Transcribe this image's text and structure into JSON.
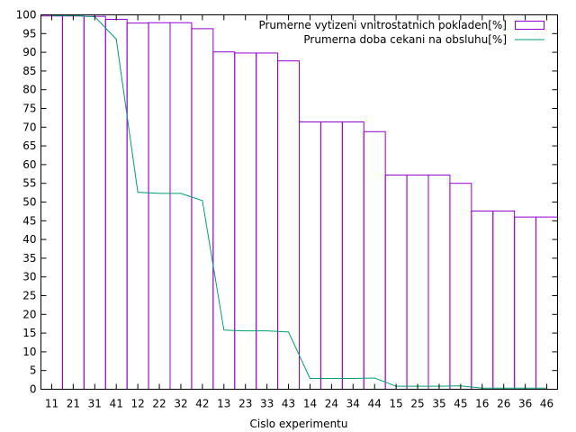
{
  "colors": {
    "bars": "#9400d3",
    "line": "#009e73",
    "axis": "#000000",
    "background": "#ffffff"
  },
  "chart_data": {
    "type": "bar",
    "title": "",
    "xlabel": "Cislo experimentu",
    "ylabel": "",
    "ylim": [
      0,
      100
    ],
    "yticks": [
      0,
      5,
      10,
      15,
      20,
      25,
      30,
      35,
      40,
      45,
      50,
      55,
      60,
      65,
      70,
      75,
      80,
      85,
      90,
      95,
      100
    ],
    "grid": false,
    "legend_position": "top-right",
    "categories": [
      "11",
      "21",
      "31",
      "41",
      "12",
      "22",
      "32",
      "42",
      "13",
      "23",
      "33",
      "43",
      "14",
      "24",
      "34",
      "44",
      "15",
      "25",
      "35",
      "45",
      "16",
      "26",
      "36",
      "46"
    ],
    "series": [
      {
        "name": "Prumerne vytizeni vnitrostatnich pokladen[%]",
        "type": "bar",
        "values": [
          99.7,
          99.7,
          99.6,
          98.8,
          97.8,
          97.9,
          97.9,
          96.3,
          90.1,
          89.8,
          89.8,
          87.7,
          71.4,
          71.4,
          71.4,
          68.8,
          57.2,
          57.2,
          57.2,
          55.0,
          47.6,
          47.6,
          46.0,
          46.0
        ]
      },
      {
        "name": "Prumerna doba cekani na obsluhu[%]",
        "type": "line",
        "values": [
          99.8,
          99.8,
          99.5,
          93.5,
          52.6,
          52.3,
          52.3,
          50.4,
          15.8,
          15.6,
          15.6,
          15.3,
          2.9,
          2.9,
          2.9,
          3.0,
          0.8,
          0.8,
          0.8,
          0.9,
          0.3,
          0.3,
          0.3,
          0.3
        ]
      }
    ]
  }
}
